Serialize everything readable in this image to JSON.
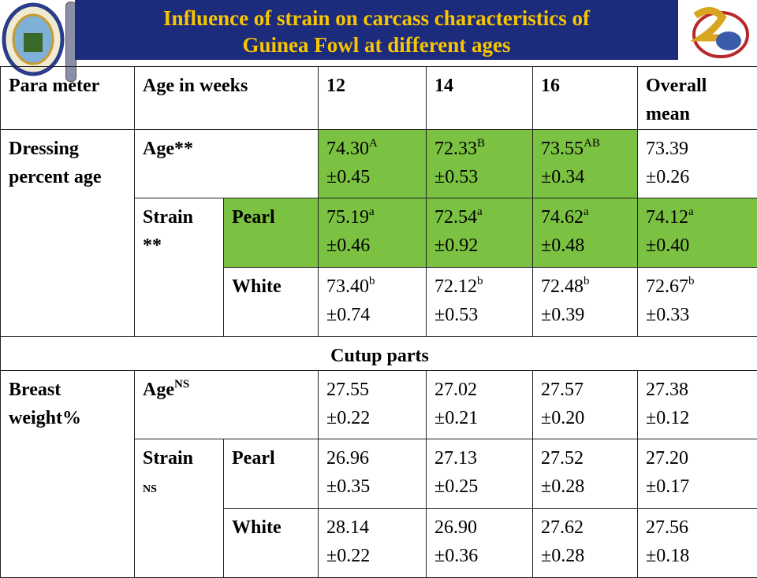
{
  "header": {
    "title_lines": [
      "Influence of strain on carcass characteristics of",
      "Guinea Fowl at different ages"
    ]
  },
  "highlight_color": "#7cc242",
  "table": {
    "header": [
      "Para meter",
      "Age in weeks",
      "12",
      "14",
      "16",
      "Overall mean"
    ],
    "dressing": {
      "parameter": "Dressing percent age",
      "age": {
        "label": {
          "text": "Age**"
        },
        "cells": [
          {
            "mean": "74.30",
            "sup": "A",
            "se": "±0.45",
            "highlight": true
          },
          {
            "mean": "72.33",
            "sup": "B",
            "se": "±0.53",
            "highlight": true
          },
          {
            "mean": "73.55",
            "sup": "AB",
            "se": "±0.34",
            "highlight": true
          },
          {
            "mean": "73.39",
            "se": "±0.26"
          }
        ]
      },
      "strain": {
        "label": {
          "text": "Strain",
          "note": "**"
        },
        "rows": [
          {
            "label": "Pearl",
            "highlight": true,
            "cells": [
              {
                "mean": "75.19",
                "sup": "a",
                "se": "±0.46",
                "highlight": true
              },
              {
                "mean": "72.54",
                "sup": "a",
                "se": "±0.92",
                "highlight": true
              },
              {
                "mean": "74.62",
                "sup": "a",
                "se": "±0.48",
                "highlight": true
              },
              {
                "mean": "74.12",
                "sup": "a",
                "se": "±0.40",
                "highlight": true
              }
            ]
          },
          {
            "label": "White",
            "cells": [
              {
                "mean": "73.40",
                "sup": "b",
                "se": "±0.74"
              },
              {
                "mean": "72.12",
                "sup": "b",
                "se": "±0.53"
              },
              {
                "mean": "72.48",
                "sup": "b",
                "se": "±0.39"
              },
              {
                "mean": "72.67",
                "sup": "b",
                "se": "±0.33"
              }
            ]
          }
        ]
      }
    },
    "cutup_title": "Cutup parts",
    "breast": {
      "parameter": "Breast weight%",
      "age": {
        "label": {
          "text": "Age",
          "sup": "NS"
        },
        "cells": [
          {
            "mean": "27.55",
            "se": "±0.22"
          },
          {
            "mean": "27.02",
            "se": "±0.21"
          },
          {
            "mean": "27.57",
            "se": "±0.20"
          },
          {
            "mean": "27.38",
            "se": "±0.12"
          }
        ]
      },
      "strain": {
        "label": {
          "text": "Strain",
          "note": "NS"
        },
        "rows": [
          {
            "label": "Pearl",
            "cells": [
              {
                "mean": "26.96",
                "se": "±0.35"
              },
              {
                "mean": "27.13",
                "se": "±0.25"
              },
              {
                "mean": "27.52",
                "se": "±0.28"
              },
              {
                "mean": "27.20",
                "se": "±0.17"
              }
            ]
          },
          {
            "label": "White",
            "cells": [
              {
                "mean": "28.14",
                "se": "±0.22"
              },
              {
                "mean": "26.90",
                "se": "±0.36"
              },
              {
                "mean": "27.62",
                "se": "±0.28"
              },
              {
                "mean": "27.56",
                "se": "±0.18"
              }
            ]
          }
        ]
      }
    }
  }
}
